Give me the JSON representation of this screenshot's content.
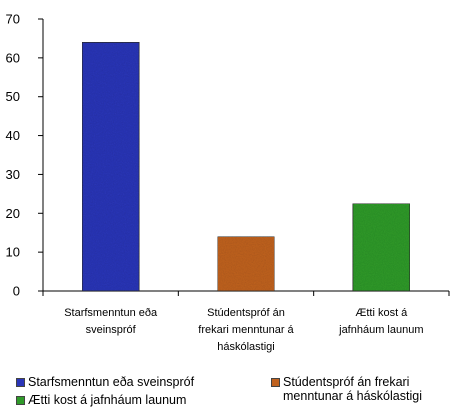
{
  "chart_data": {
    "type": "bar",
    "categories": [
      "Starfsmenntun eða sveinspróf",
      "Stúdentspróf án frekari menntunar á háskólastigi",
      "Ætti kost á jafnháum launum"
    ],
    "category_labels": [
      [
        "Starfsmenntun eða",
        "sveinspróf"
      ],
      [
        "Stúdentspróf án",
        "frekari menntunar á",
        "háskólastigi"
      ],
      [
        "Ætti kost á",
        "jafnháum launum"
      ]
    ],
    "values": [
      64,
      14,
      22.5
    ],
    "colors": [
      "#2a35b8",
      "#c0621f",
      "#2f9a2a"
    ],
    "ylim": [
      0,
      70
    ],
    "yticks": [
      0,
      10,
      20,
      30,
      40,
      50,
      60,
      70
    ],
    "grid": false,
    "legend_position": "bottom",
    "legend": [
      {
        "label": "Starfsmenntun eða sveinspróf",
        "color": "#2a35b8"
      },
      {
        "label": "Stúdentspróf án frekari\nmenntunar á háskólastigi",
        "color": "#c0621f"
      },
      {
        "label": "Ætti kost á jafnháum launum",
        "color": "#2f9a2a"
      }
    ]
  }
}
